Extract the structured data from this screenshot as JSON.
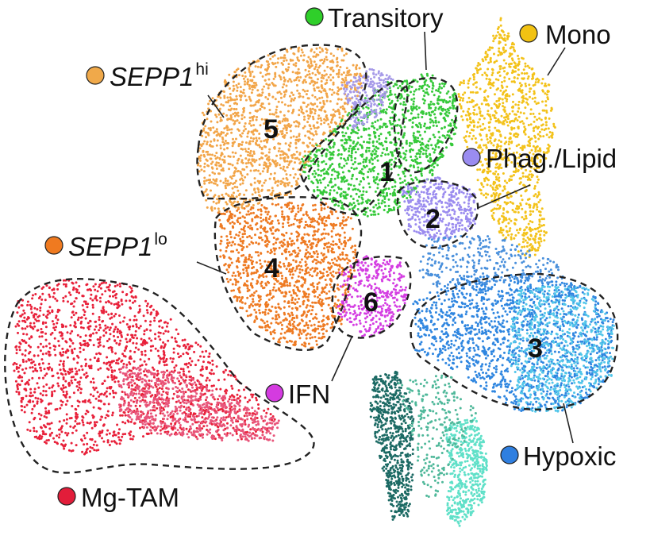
{
  "chart_data": {
    "type": "scatter",
    "title": "",
    "xlabel": "",
    "ylabel": "",
    "legend_entries": [
      {
        "key": "transitory",
        "label": "Transitory",
        "color": "#2fcf2a"
      },
      {
        "key": "mono",
        "label": "Mono",
        "color": "#f2c212"
      },
      {
        "key": "sepp1hi",
        "label_main": "SEPP1",
        "label_sup": "hi",
        "color": "#f0a94a"
      },
      {
        "key": "phag",
        "label": "Phag./Lipid",
        "color": "#9a8cf0"
      },
      {
        "key": "sepp1lo",
        "label_main": "SEPP1",
        "label_sup": "lo",
        "color": "#ef7a20"
      },
      {
        "key": "ifn",
        "label": "IFN",
        "color": "#d43be0"
      },
      {
        "key": "hypoxic",
        "label": "Hypoxic",
        "color": "#2f7fe0"
      },
      {
        "key": "mgtam",
        "label": "Mg-TAM",
        "color": "#e21d3a"
      }
    ],
    "cluster_numbers": [
      "1",
      "2",
      "3",
      "4",
      "5",
      "6"
    ],
    "series": [
      {
        "key": "mgtam",
        "color": "#e8213a",
        "n": 1700,
        "seed": 11,
        "poly": [
          [
            22,
            380
          ],
          [
            75,
            350
          ],
          [
            160,
            355
          ],
          [
            230,
            415
          ],
          [
            310,
            485
          ],
          [
            350,
            525
          ],
          [
            332,
            552
          ],
          [
            280,
            554
          ],
          [
            200,
            545
          ],
          [
            100,
            574
          ],
          [
            35,
            550
          ],
          [
            15,
            470
          ]
        ]
      },
      {
        "key": "mgtam_tail",
        "color": "#e8557a",
        "n": 700,
        "seed": 12,
        "poly": [
          [
            150,
            460
          ],
          [
            230,
            470
          ],
          [
            300,
            505
          ],
          [
            352,
            530
          ],
          [
            345,
            556
          ],
          [
            270,
            556
          ],
          [
            190,
            545
          ],
          [
            150,
            520
          ]
        ]
      },
      {
        "key": "sepp1lo",
        "color": "#ee7a22",
        "n": 1300,
        "seed": 21,
        "poly": [
          [
            275,
            265
          ],
          [
            345,
            255
          ],
          [
            410,
            255
          ],
          [
            445,
            275
          ],
          [
            450,
            330
          ],
          [
            430,
            410
          ],
          [
            392,
            440
          ],
          [
            348,
            430
          ],
          [
            300,
            388
          ],
          [
            278,
            330
          ]
        ]
      },
      {
        "key": "sepp1hi",
        "color": "#f2a548",
        "n": 1400,
        "seed": 31,
        "poly": [
          [
            255,
            140
          ],
          [
            295,
            85
          ],
          [
            360,
            60
          ],
          [
            430,
            60
          ],
          [
            462,
            95
          ],
          [
            440,
            150
          ],
          [
            395,
            195
          ],
          [
            370,
            245
          ],
          [
            320,
            260
          ],
          [
            260,
            270
          ],
          [
            248,
            210
          ]
        ]
      },
      {
        "key": "transitory",
        "color": "#36c93a",
        "n": 1200,
        "seed": 41,
        "poly": [
          [
            380,
            200
          ],
          [
            430,
            150
          ],
          [
            480,
            105
          ],
          [
            540,
            92
          ],
          [
            575,
            110
          ],
          [
            575,
            175
          ],
          [
            540,
            230
          ],
          [
            495,
            270
          ],
          [
            455,
            275
          ],
          [
            400,
            250
          ],
          [
            382,
            225
          ]
        ]
      },
      {
        "key": "purpleband",
        "color": "#a69ae8",
        "n": 240,
        "seed": 42,
        "poly": [
          [
            430,
            105
          ],
          [
            470,
            85
          ],
          [
            498,
            100
          ],
          [
            475,
            150
          ],
          [
            445,
            165
          ]
        ]
      },
      {
        "key": "mono",
        "color": "#f3c21a",
        "n": 1100,
        "seed": 51,
        "poly": [
          [
            630,
            20
          ],
          [
            650,
            60
          ],
          [
            692,
            105
          ],
          [
            700,
            160
          ],
          [
            680,
            230
          ],
          [
            690,
            300
          ],
          [
            670,
            330
          ],
          [
            630,
            300
          ],
          [
            600,
            230
          ],
          [
            585,
            175
          ],
          [
            575,
            110
          ],
          [
            615,
            60
          ]
        ]
      },
      {
        "key": "phag",
        "color": "#9b8cef",
        "n": 420,
        "seed": 61,
        "poly": [
          [
            505,
            235
          ],
          [
            550,
            222
          ],
          [
            598,
            240
          ],
          [
            600,
            285
          ],
          [
            560,
            305
          ],
          [
            515,
            290
          ]
        ]
      },
      {
        "key": "ifn",
        "color": "#d43de2",
        "n": 380,
        "seed": 71,
        "poly": [
          [
            428,
            340
          ],
          [
            462,
            322
          ],
          [
            505,
            330
          ],
          [
            515,
            375
          ],
          [
            490,
            415
          ],
          [
            455,
            428
          ],
          [
            425,
            395
          ]
        ]
      },
      {
        "key": "hypoxic",
        "color": "#2f86e0",
        "n": 1500,
        "seed": 81,
        "poly": [
          [
            520,
            380
          ],
          [
            580,
            348
          ],
          [
            660,
            345
          ],
          [
            740,
            360
          ],
          [
            775,
            405
          ],
          [
            770,
            475
          ],
          [
            720,
            520
          ],
          [
            655,
            520
          ],
          [
            580,
            470
          ],
          [
            522,
            440
          ]
        ]
      },
      {
        "key": "hypoxic_light",
        "color": "#52c6ea",
        "n": 700,
        "seed": 82,
        "poly": [
          [
            650,
            360
          ],
          [
            740,
            362
          ],
          [
            775,
            410
          ],
          [
            770,
            478
          ],
          [
            718,
            520
          ],
          [
            655,
            518
          ],
          [
            640,
            440
          ]
        ]
      },
      {
        "key": "scatterblue",
        "color": "#4a90dc",
        "n": 300,
        "seed": 83,
        "poly": [
          [
            540,
            300
          ],
          [
            620,
            295
          ],
          [
            700,
            330
          ],
          [
            720,
            360
          ],
          [
            640,
            352
          ],
          [
            560,
            370
          ],
          [
            525,
            345
          ]
        ]
      },
      {
        "key": "darkteal",
        "color": "#1c6a64",
        "n": 700,
        "seed": 91,
        "poly": [
          [
            470,
            475
          ],
          [
            500,
            468
          ],
          [
            522,
            520
          ],
          [
            520,
            600
          ],
          [
            515,
            650
          ],
          [
            495,
            655
          ],
          [
            482,
            590
          ],
          [
            466,
            520
          ]
        ]
      },
      {
        "key": "aqua",
        "color": "#5fe0c8",
        "n": 500,
        "seed": 92,
        "poly": [
          [
            560,
            535
          ],
          [
            600,
            525
          ],
          [
            615,
            570
          ],
          [
            610,
            630
          ],
          [
            580,
            665
          ],
          [
            560,
            648
          ],
          [
            568,
            590
          ]
        ]
      },
      {
        "key": "midgreen",
        "color": "#4fb89a",
        "n": 240,
        "seed": 93,
        "poly": [
          [
            500,
            480
          ],
          [
            570,
            470
          ],
          [
            600,
            520
          ],
          [
            575,
            580
          ],
          [
            540,
            640
          ],
          [
            522,
            560
          ]
        ]
      }
    ]
  }
}
